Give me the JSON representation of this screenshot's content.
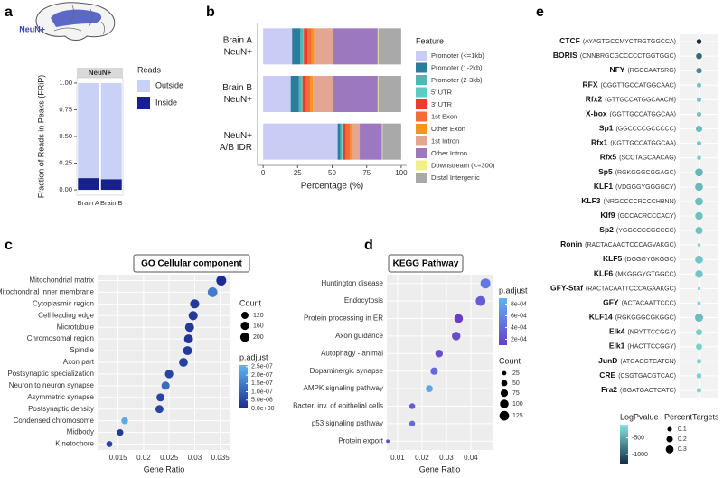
{
  "chart_data": [
    {
      "type": "bar",
      "label": "a",
      "image_label": "NeuN+",
      "title": "NeuN+",
      "ylabel": "Fraction of Reads in Peaks (FRiP)",
      "categories": [
        "Brain A",
        "Brain B"
      ],
      "series": [
        {
          "name": "Outside",
          "color": "#c9d2f6",
          "values": [
            0.89,
            0.9
          ]
        },
        {
          "name": "Inside",
          "color": "#18208a",
          "values": [
            0.11,
            0.1
          ]
        }
      ],
      "ylim": [
        -0.05,
        1.05
      ],
      "yticks": [
        {
          "value": 0,
          "label": "0.00"
        },
        {
          "value": 0.25,
          "label": "0.25"
        },
        {
          "value": 0.5,
          "label": "0.50"
        },
        {
          "value": 0.75,
          "label": "0.75"
        },
        {
          "value": 1,
          "label": "1.00"
        }
      ],
      "legend_title": "Reads"
    },
    {
      "type": "barh",
      "label": "b",
      "categories": [
        [
          "Brain A",
          "NeuN+"
        ],
        [
          "Brain B",
          "NeuN+"
        ],
        [
          "NeuN+",
          "A/B IDR"
        ]
      ],
      "series": [
        {
          "name": "Promoter (<=1kb)",
          "color": "#c9cdf6",
          "values": [
            21,
            20,
            54
          ]
        },
        {
          "name": "Promoter (1-2kb)",
          "color": "#2a7d9e",
          "values": [
            6,
            6,
            2
          ]
        },
        {
          "name": "Promoter (2-3kb)",
          "color": "#4fb8b5",
          "values": [
            2,
            2,
            1
          ]
        },
        {
          "name": "5' UTR",
          "color": "#5fc9c4",
          "values": [
            0.5,
            0.5,
            0.5
          ]
        },
        {
          "name": "3' UTR",
          "color": "#ee3b2b",
          "values": [
            2.5,
            2.5,
            2.5
          ]
        },
        {
          "name": "1st Exon",
          "color": "#f26c3a",
          "values": [
            3,
            3,
            3
          ]
        },
        {
          "name": "Other Exon",
          "color": "#f7941d",
          "values": [
            2,
            2,
            2
          ]
        },
        {
          "name": "1st Intron",
          "color": "#e4a592",
          "values": [
            14,
            15,
            5
          ]
        },
        {
          "name": "Other Intron",
          "color": "#9b78bf",
          "values": [
            32,
            32,
            16
          ]
        },
        {
          "name": "Downstream (<=300)",
          "color": "#f1ef8c",
          "values": [
            0.5,
            0.5,
            0.5
          ]
        },
        {
          "name": "Distal Intergenic",
          "color": "#a9a9a9",
          "values": [
            16.5,
            16.5,
            13.5
          ]
        }
      ],
      "xlim": [
        -4,
        104
      ],
      "xticks": [
        0,
        25,
        50,
        75,
        100
      ],
      "xlabel": "Percentage (%)",
      "legend_title": "Feature"
    },
    {
      "type": "dot",
      "label": "c",
      "title": "GO Cellular component",
      "categories": [
        "Mitochondrial matrix",
        "Mitochondrial inner membrane",
        "Cytoplasmic region",
        "Cell leading edge",
        "Microtubule",
        "Chromosomal region",
        "Spindle",
        "Axon part",
        "Postsynaptic specialization",
        "Neuron to neuron synapse",
        "Asymmetric synapse",
        "Postsynaptic density",
        "Condensed chromosome",
        "Midbody",
        "Kinetochore"
      ],
      "values": [
        0.0352,
        0.0335,
        0.03,
        0.0297,
        0.029,
        0.0288,
        0.0286,
        0.0278,
        0.025,
        0.0243,
        0.0233,
        0.0231,
        0.0163,
        0.0154,
        0.0133
      ],
      "sizes": [
        232,
        221,
        198,
        196,
        191,
        190,
        189,
        183,
        165,
        160,
        154,
        152,
        108,
        102,
        88
      ],
      "color_values": [
        1e-09,
        1.5e-07,
        3e-08,
        3e-08,
        3e-08,
        2e-08,
        3e-08,
        4e-08,
        5e-08,
        1.2e-07,
        5e-08,
        5e-08,
        2.4e-07,
        3e-08,
        5e-08
      ],
      "xlim": [
        0.011,
        0.037
      ],
      "xticks": [
        0.015,
        0.02,
        0.025,
        0.03,
        0.035
      ],
      "xlabel": "Gene Ratio",
      "size_legend": {
        "title": "Count",
        "ticks": [
          120,
          160,
          200
        ]
      },
      "colorbar": {
        "title": "p.adjust",
        "lim": [
          0,
          2.6e-07
        ],
        "low_color": "#1b2a8f",
        "high_color": "#5cb6f5",
        "ticks": [
          {
            "value": 2.5e-07,
            "label": "2.5e-07"
          },
          {
            "value": 2e-07,
            "label": "2.0e-07"
          },
          {
            "value": 1.5e-07,
            "label": "1.5e-07"
          },
          {
            "value": 1e-07,
            "label": "1.0e-07"
          },
          {
            "value": 5e-08,
            "label": "5.0e-08"
          },
          {
            "value": 0,
            "label": "0.0e+00"
          }
        ]
      }
    },
    {
      "type": "dot",
      "label": "d",
      "title": "KEGG Pathway",
      "categories": [
        "Huntington disease",
        "Endocytosis",
        "Protein processing in ER",
        "Axon guidance",
        "Autophagy - animal",
        "Dopaminergic synapse",
        "AMPK signaling pathway",
        "Bacter. inv. of epithelial cells",
        "p53 signaling pathway",
        "Protein export"
      ],
      "values": [
        0.046,
        0.044,
        0.035,
        0.034,
        0.027,
        0.025,
        0.023,
        0.016,
        0.016,
        0.006
      ],
      "sizes": [
        133,
        128,
        102,
        99,
        78,
        73,
        67,
        46,
        46,
        17
      ],
      "color_values": [
        0.0005,
        0.0003,
        0.0001,
        0.0002,
        0.0002,
        0.0004,
        0.0008,
        0.0003,
        0.0004,
        0.0002
      ],
      "xlim": [
        0.0056,
        0.0489
      ],
      "xticks": [
        0.01,
        0.02,
        0.03,
        0.04
      ],
      "xlabel": "Gene Ratio",
      "size_legend": {
        "title": "Count",
        "ticks": [
          25,
          50,
          75,
          100,
          125
        ]
      },
      "colorbar": {
        "title": "p.adjust",
        "lim": [
          0.0001,
          0.0009
        ],
        "low_color": "#6a3ec8",
        "high_color": "#5ab4f5",
        "ticks": [
          {
            "value": 0.0008,
            "label": "8e-04"
          },
          {
            "value": 0.0006,
            "label": "6e-04"
          },
          {
            "value": 0.0004,
            "label": "4e-04"
          },
          {
            "value": 0.0002,
            "label": "2e-04"
          }
        ]
      }
    },
    {
      "type": "dotcolumn",
      "label": "e",
      "categories": [
        "CTCF",
        "BORIS",
        "NFY",
        "RFX",
        "Rfx2",
        "X-box",
        "Sp1",
        "Rfx1",
        "Rfx5",
        "Sp5",
        "KLF1",
        "KLF3",
        "Klf9",
        "Sp2",
        "Ronin",
        "KLF5",
        "KLF6",
        "GFY-Staf",
        "GFY",
        "KLF14",
        "Elk4",
        "Elk1",
        "JunD",
        "CRE",
        "Fra2"
      ],
      "motifs": [
        "(AYAGTGCCMYCTRGTGGCCA)",
        "(CNNBRGCGCCCCCTGGTGGC)",
        "(RGCCAATSRG)",
        "(CGGTTGCCATGGCAAC)",
        "(GTTGCCATGGCAACM)",
        "(GGTTGCCATGGCAA)",
        "(GGCCCCGCCCCC)",
        "(KGTTGCCATGGCAA)",
        "(SCCTAGCAACAG)",
        "(RGKGGGCGGAGC)",
        "(VDGGGYGGGGCY)",
        "(NRGCCCCRCCCHBNN)",
        "(GCCACRCCCACY)",
        "(YGGCCCCGCCCC)",
        "(RACTACAACTCCCAGVAKGC)",
        "(DGGGYGKGGC)",
        "(MKGGGYGTGGCC)",
        "(RACTACAATTCCCAGAAKGC)",
        "(ACTACAATTCCC)",
        "(RGKGGGCGKGGC)",
        "(NRYTTCCGGY)",
        "(HACTTCCGGY)",
        "(ATGACGTCATCN)",
        "(CSGTGACGTCAC)",
        "(GGATGACTCATC)"
      ],
      "color_values": [
        -1300,
        -900,
        -700,
        -300,
        -300,
        -300,
        -350,
        -280,
        -250,
        -400,
        -380,
        -350,
        -330,
        -320,
        -200,
        -300,
        -300,
        -180,
        -180,
        -350,
        -250,
        -240,
        -220,
        -210,
        -200
      ],
      "sizes": [
        0.12,
        0.17,
        0.15,
        0.1,
        0.1,
        0.1,
        0.2,
        0.1,
        0.08,
        0.3,
        0.3,
        0.3,
        0.28,
        0.25,
        0.05,
        0.3,
        0.28,
        0.04,
        0.06,
        0.32,
        0.18,
        0.18,
        0.1,
        0.12,
        0.1
      ],
      "size_legend": {
        "title": "PercentTargets",
        "ticks": [
          0.1,
          0.2,
          0.3
        ]
      },
      "colorbar": {
        "title": "LogPvalue",
        "lim": [
          -1300,
          -100
        ],
        "low_color": "#132b43",
        "high_color": "#86e3e0",
        "ticks": [
          -500,
          -1000
        ]
      }
    }
  ]
}
